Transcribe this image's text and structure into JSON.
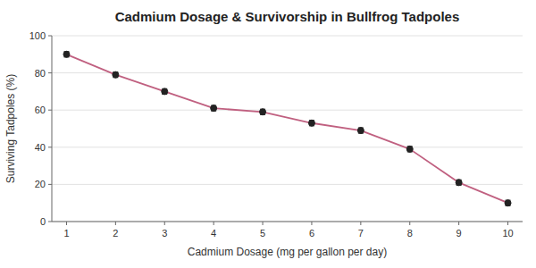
{
  "chart_data": {
    "type": "line",
    "title": "Cadmium Dosage & Survivorship in Bullfrog Tadpoles",
    "xlabel": "Cadmium Dosage (mg per gallon per day)",
    "ylabel": "Surviving Tadpoles (%)",
    "x": [
      1,
      2,
      3,
      4,
      5,
      6,
      7,
      8,
      9,
      10
    ],
    "values": [
      90,
      79,
      70,
      61,
      59,
      53,
      49,
      39,
      21,
      10
    ],
    "yerr": [
      1.5,
      1.5,
      1.5,
      1.5,
      1.5,
      1.5,
      1.5,
      1.5,
      1.5,
      1.5
    ],
    "color": "#c06080",
    "marker": "circle",
    "xlim": [
      0.7,
      10.3
    ],
    "ylim": [
      0,
      100
    ],
    "xticks": [
      1,
      2,
      3,
      4,
      5,
      6,
      7,
      8,
      9,
      10
    ],
    "yticks": [
      0,
      20,
      40,
      60,
      80,
      100
    ],
    "grid": true
  }
}
